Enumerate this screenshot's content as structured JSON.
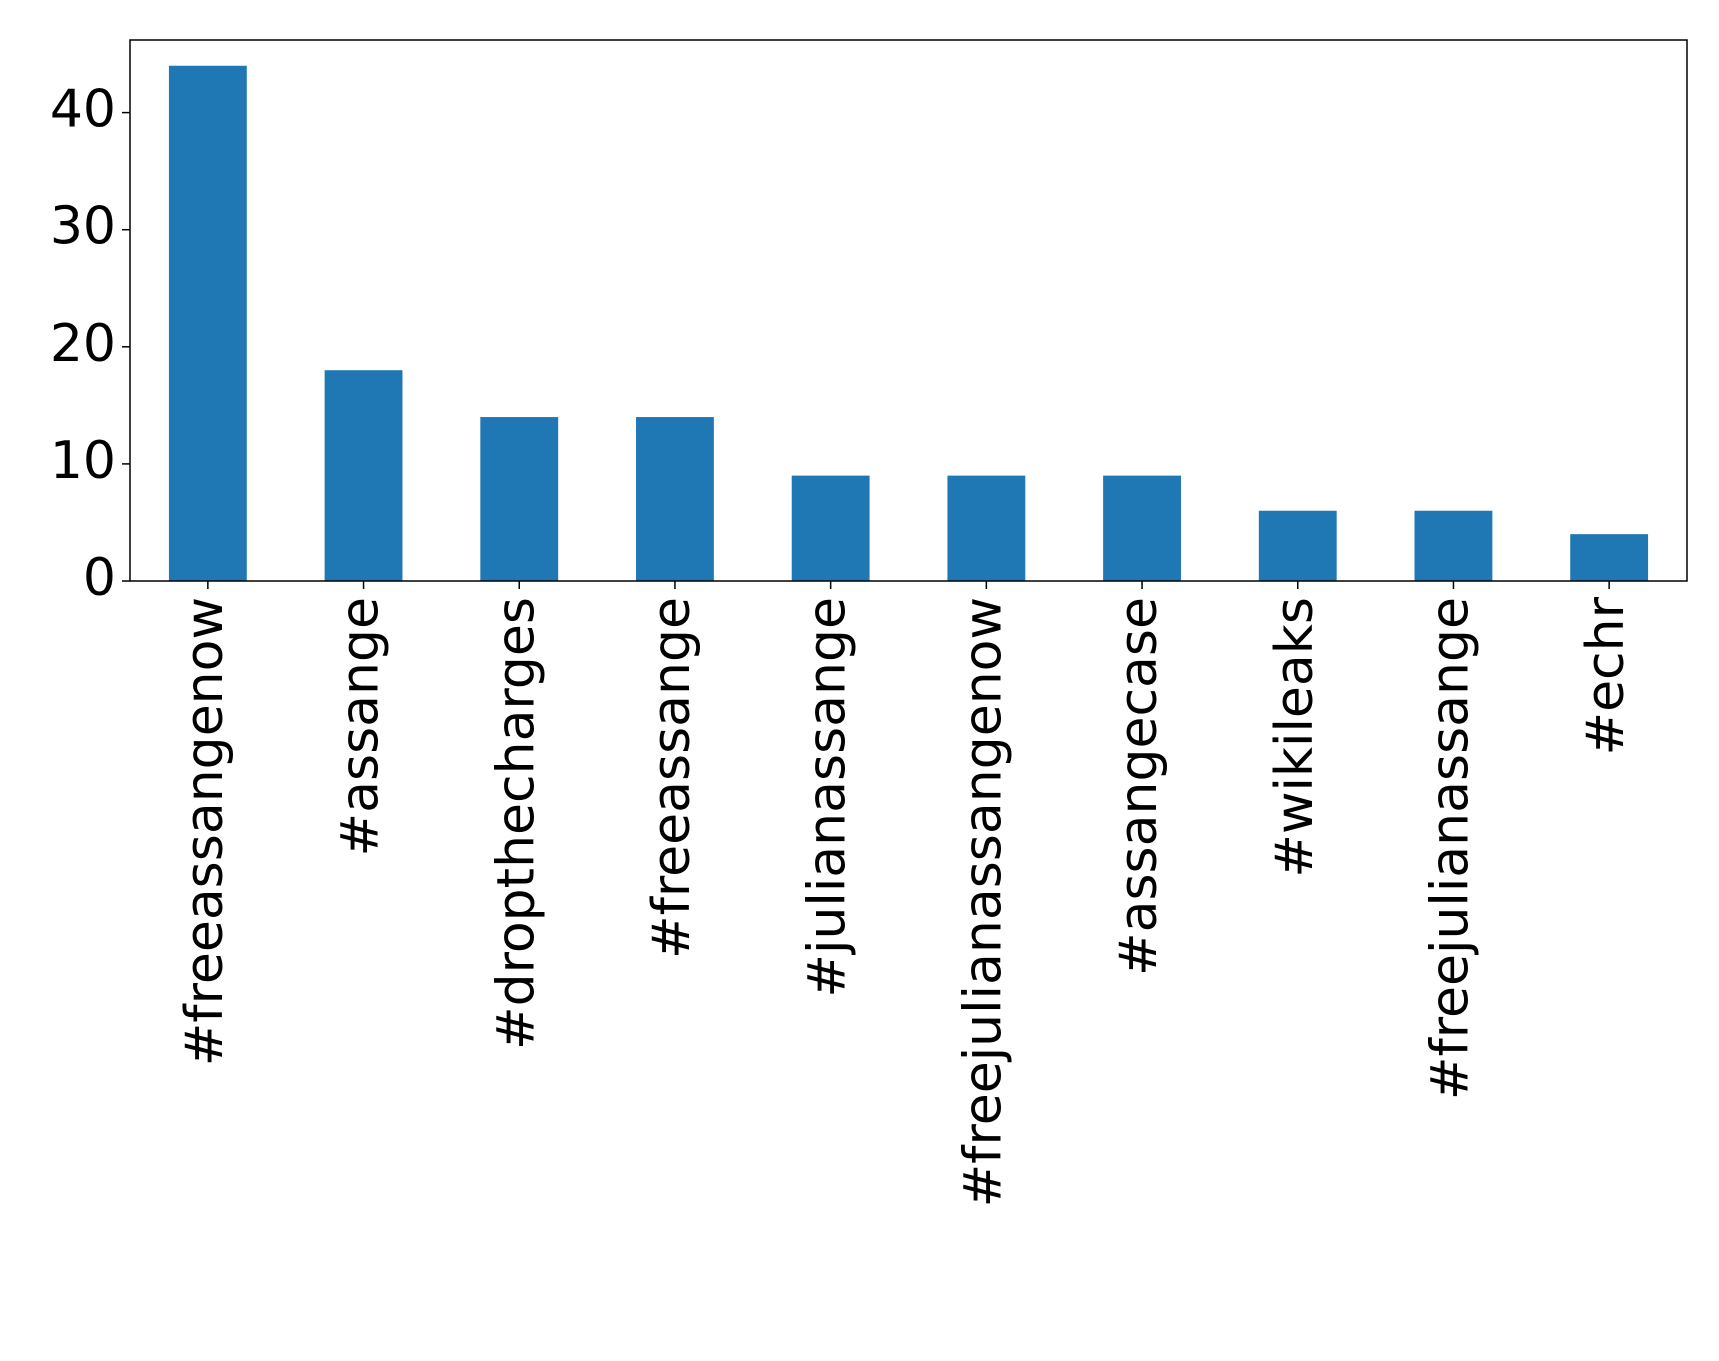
{
  "chart_data": {
    "type": "bar",
    "categories": [
      "#freeassangenow",
      "#assange",
      "#dropthecharges",
      "#freeassange",
      "#julianassange",
      "#freejulianassangenow",
      "#assangecase",
      "#wikileaks",
      "#freejulianassange",
      "#echr"
    ],
    "values": [
      44,
      18,
      14,
      14,
      9,
      9,
      9,
      6,
      6,
      4
    ],
    "color": "#1f77b4",
    "ylim": [
      0,
      46.2
    ],
    "yticks": [
      0,
      10,
      20,
      30,
      40
    ],
    "grid": false
  }
}
